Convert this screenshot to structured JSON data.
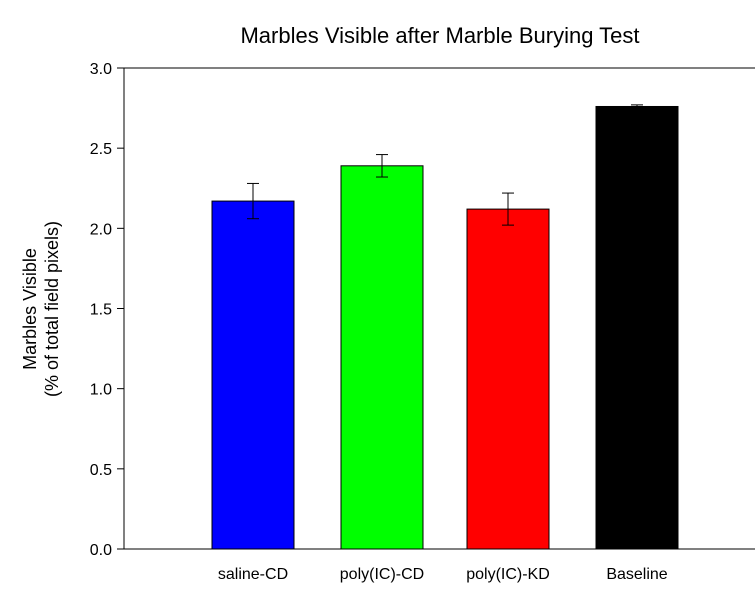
{
  "chart_data": {
    "type": "bar",
    "title": "Marbles Visible after Marble Burying Test",
    "ylabel_line1": "Marbles Visible",
    "ylabel_line2": "(% of total field pixels)",
    "xlabel": "",
    "categories": [
      "saline-CD",
      "poly(IC)-CD",
      "poly(IC)-KD",
      "Baseline"
    ],
    "values": [
      2.17,
      2.39,
      2.12,
      2.76
    ],
    "errors": [
      0.11,
      0.07,
      0.1,
      0.01
    ],
    "colors": [
      "#0000ff",
      "#00ff00",
      "#ff0000",
      "#000000"
    ],
    "ylim": [
      0,
      3.0
    ],
    "yticks": [
      0.0,
      0.5,
      1.0,
      1.5,
      2.0,
      2.5,
      3.0
    ],
    "ytick_labels": [
      "0.0",
      "0.5",
      "1.0",
      "1.5",
      "2.0",
      "2.5",
      "3.0"
    ],
    "grid": false,
    "legend": "none"
  }
}
